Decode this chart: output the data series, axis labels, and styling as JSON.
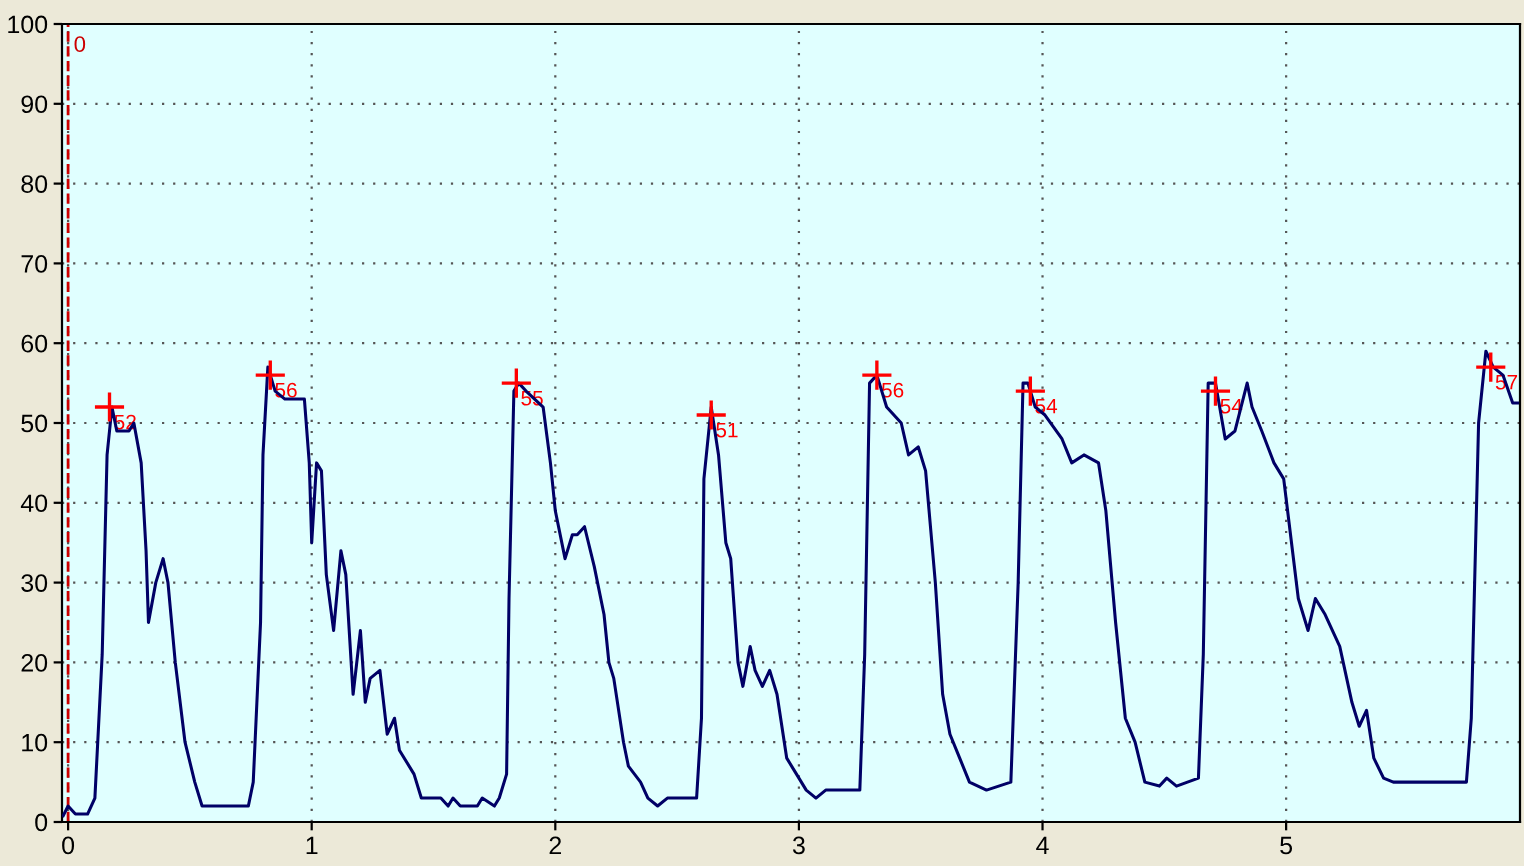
{
  "chart_data": {
    "type": "line",
    "xlim": [
      -0.025,
      5.96
    ],
    "ylim": [
      0,
      100
    ],
    "xticks": [
      0,
      1,
      2,
      3,
      4,
      5
    ],
    "yticks": [
      0,
      10,
      20,
      30,
      40,
      50,
      60,
      70,
      80,
      90,
      100
    ],
    "grid": true,
    "legend": false,
    "ref_lines": [
      {
        "axis": "x",
        "value": 0,
        "label": "0",
        "color": "#cc0000",
        "line_style": "dashed"
      }
    ],
    "series": [
      {
        "color": "#000066",
        "marker": "none",
        "line_style": "solid",
        "x": [
          -0.02,
          0,
          0.03,
          0.08,
          0.11,
          0.14,
          0.16,
          0.18,
          0.2,
          0.25,
          0.27,
          0.3,
          0.32,
          0.33,
          0.36,
          0.39,
          0.41,
          0.44,
          0.48,
          0.52,
          0.55,
          0.74,
          0.76,
          0.79,
          0.8,
          0.82,
          0.85,
          0.89,
          0.97,
          0.99,
          1.0,
          1.02,
          1.04,
          1.06,
          1.09,
          1.12,
          1.14,
          1.17,
          1.2,
          1.22,
          1.24,
          1.28,
          1.31,
          1.34,
          1.36,
          1.42,
          1.45,
          1.53,
          1.56,
          1.58,
          1.61,
          1.68,
          1.7,
          1.75,
          1.77,
          1.8,
          1.81,
          1.83,
          1.85,
          1.88,
          1.95,
          1.98,
          2.0,
          2.04,
          2.07,
          2.09,
          2.12,
          2.16,
          2.2,
          2.22,
          2.24,
          2.28,
          2.3,
          2.35,
          2.38,
          2.42,
          2.46,
          2.58,
          2.6,
          2.61,
          2.64,
          2.67,
          2.7,
          2.72,
          2.75,
          2.77,
          2.8,
          2.82,
          2.85,
          2.88,
          2.91,
          2.95,
          2.99,
          3.03,
          3.07,
          3.11,
          3.25,
          3.27,
          3.29,
          3.32,
          3.36,
          3.42,
          3.45,
          3.49,
          3.52,
          3.56,
          3.59,
          3.62,
          3.66,
          3.7,
          3.77,
          3.87,
          3.9,
          3.92,
          3.94,
          3.97,
          4.01,
          4.08,
          4.12,
          4.17,
          4.23,
          4.26,
          4.3,
          4.34,
          4.38,
          4.42,
          4.48,
          4.51,
          4.55,
          4.64,
          4.66,
          4.68,
          4.71,
          4.75,
          4.79,
          4.84,
          4.86,
          4.9,
          4.95,
          4.99,
          5.01,
          5.05,
          5.09,
          5.12,
          5.16,
          5.22,
          5.27,
          5.3,
          5.33,
          5.36,
          5.4,
          5.44,
          5.74,
          5.76,
          5.79,
          5.82,
          5.85,
          5.89,
          5.93,
          5.95
        ],
        "values": [
          0.8,
          2,
          1,
          1,
          3,
          21,
          46,
          52,
          49,
          49,
          50,
          45,
          34,
          25,
          30,
          33,
          30,
          20,
          10,
          5,
          2,
          2,
          5,
          25,
          46,
          57,
          54,
          53,
          53,
          45,
          35,
          45,
          44,
          31,
          24,
          34,
          31,
          16,
          24,
          15,
          18,
          19,
          11,
          13,
          9,
          6,
          3,
          3,
          2,
          3,
          2,
          2,
          3,
          2,
          3,
          6,
          28,
          54,
          55,
          54,
          52,
          45,
          39,
          33,
          36,
          36,
          37,
          32,
          26,
          20,
          18,
          10,
          7,
          5,
          3,
          2,
          3,
          3,
          13,
          43,
          52,
          46,
          35,
          33,
          20,
          17,
          22,
          19,
          17,
          19,
          16,
          8,
          6,
          4,
          3,
          4,
          4,
          21,
          55,
          56,
          52,
          50,
          46,
          47,
          44,
          30,
          16,
          11,
          8,
          5,
          4,
          5,
          30,
          55,
          55,
          52,
          51,
          48,
          45,
          46,
          45,
          39,
          25,
          13,
          10,
          5,
          4.5,
          5.5,
          4.5,
          5.5,
          21,
          55,
          55,
          48,
          49,
          55,
          52,
          49,
          45,
          43,
          38,
          28,
          24,
          28,
          26,
          22,
          15,
          12,
          14,
          8,
          5.5,
          5,
          5,
          13,
          50,
          59,
          57,
          56,
          52.5,
          52.5
        ]
      },
      {
        "type": "scatter",
        "color": "#ff0000",
        "marker": "cross",
        "x": [
          0.17,
          0.83,
          1.84,
          2.64,
          3.32,
          3.95,
          4.71,
          5.84
        ],
        "values": [
          52,
          56,
          55,
          51,
          56,
          54,
          54,
          57
        ],
        "value_labels": [
          "52",
          "56",
          "55",
          "51",
          "56",
          "54",
          "54",
          "57"
        ]
      }
    ]
  }
}
